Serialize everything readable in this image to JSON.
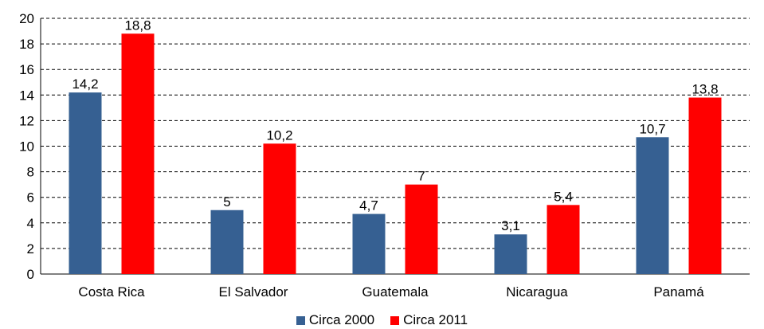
{
  "chart_data": {
    "type": "bar",
    "categories": [
      "Costa Rica",
      "El Salvador",
      "Guatemala",
      "Nicaragua",
      "Panamá"
    ],
    "series": [
      {
        "name": "Circa 2000",
        "color": "#366092",
        "values": [
          14.2,
          5,
          4.7,
          3.1,
          10.7
        ],
        "labels": [
          "14,2",
          "5",
          "4,7",
          "3,1",
          "10,7"
        ]
      },
      {
        "name": "Circa 2011",
        "color": "#ff0000",
        "values": [
          18.8,
          10.2,
          7,
          5.4,
          13.8
        ],
        "labels": [
          "18,8",
          "10,2",
          "7",
          "5,4",
          "13,8"
        ]
      }
    ],
    "ylim": [
      0,
      20
    ],
    "yticks": [
      "0",
      "2",
      "4",
      "6",
      "8",
      "10",
      "12",
      "14",
      "16",
      "18",
      "20"
    ],
    "grid": "dashed horizontal",
    "legend_position": "bottom"
  }
}
